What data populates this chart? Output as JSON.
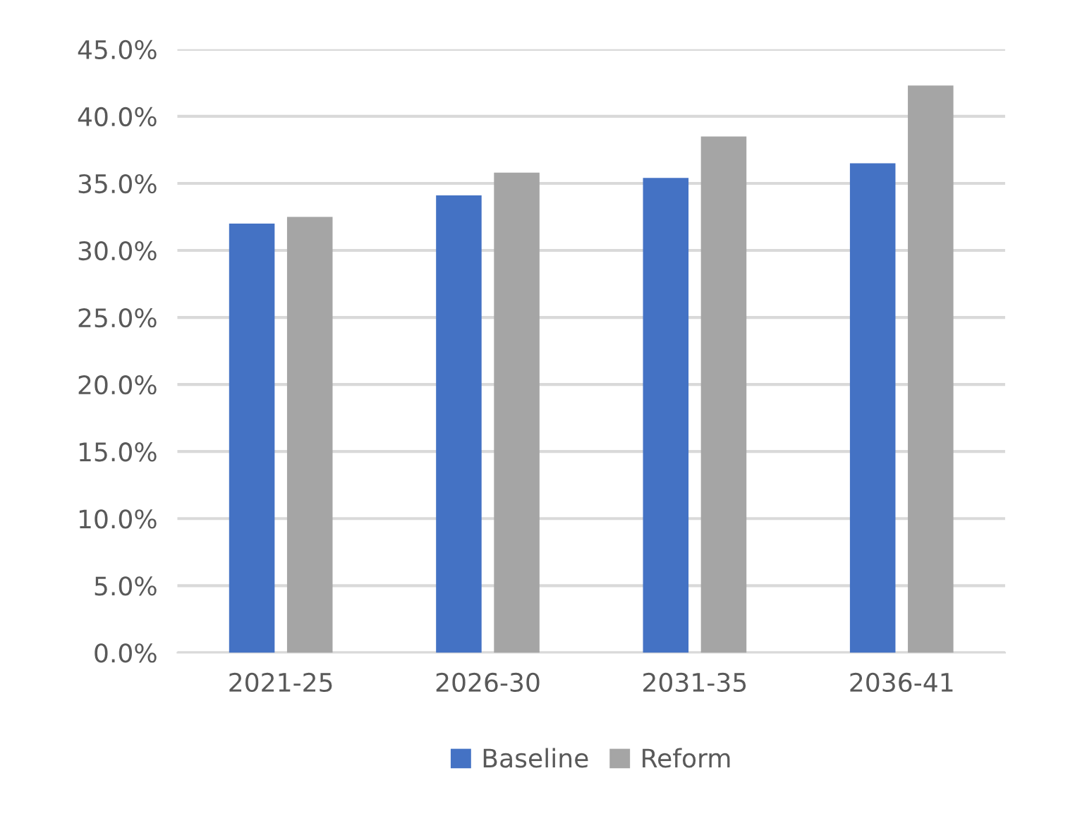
{
  "chart_data": {
    "type": "bar",
    "categories": [
      "2021-25",
      "2026-30",
      "2031-35",
      "2036-41"
    ],
    "series": [
      {
        "name": "Baseline",
        "color": "#4472c4",
        "values": [
          32.0,
          34.1,
          35.4,
          36.5
        ]
      },
      {
        "name": "Reform",
        "color": "#a5a5a5",
        "values": [
          32.5,
          35.8,
          38.5,
          42.3
        ]
      }
    ],
    "ylim": [
      0,
      45
    ],
    "yticks": [
      {
        "value": 0,
        "label": "0.0%"
      },
      {
        "value": 5,
        "label": "5.0%"
      },
      {
        "value": 10,
        "label": "10.0%"
      },
      {
        "value": 15,
        "label": "15.0%"
      },
      {
        "value": 20,
        "label": "20.0%"
      },
      {
        "value": 25,
        "label": "25.0%"
      },
      {
        "value": 30,
        "label": "30.0%"
      },
      {
        "value": 35,
        "label": "35.0%"
      },
      {
        "value": 40,
        "label": "40.0%"
      },
      {
        "value": 45,
        "label": "45.0%"
      }
    ],
    "grid": "y",
    "legend": "bottom"
  }
}
